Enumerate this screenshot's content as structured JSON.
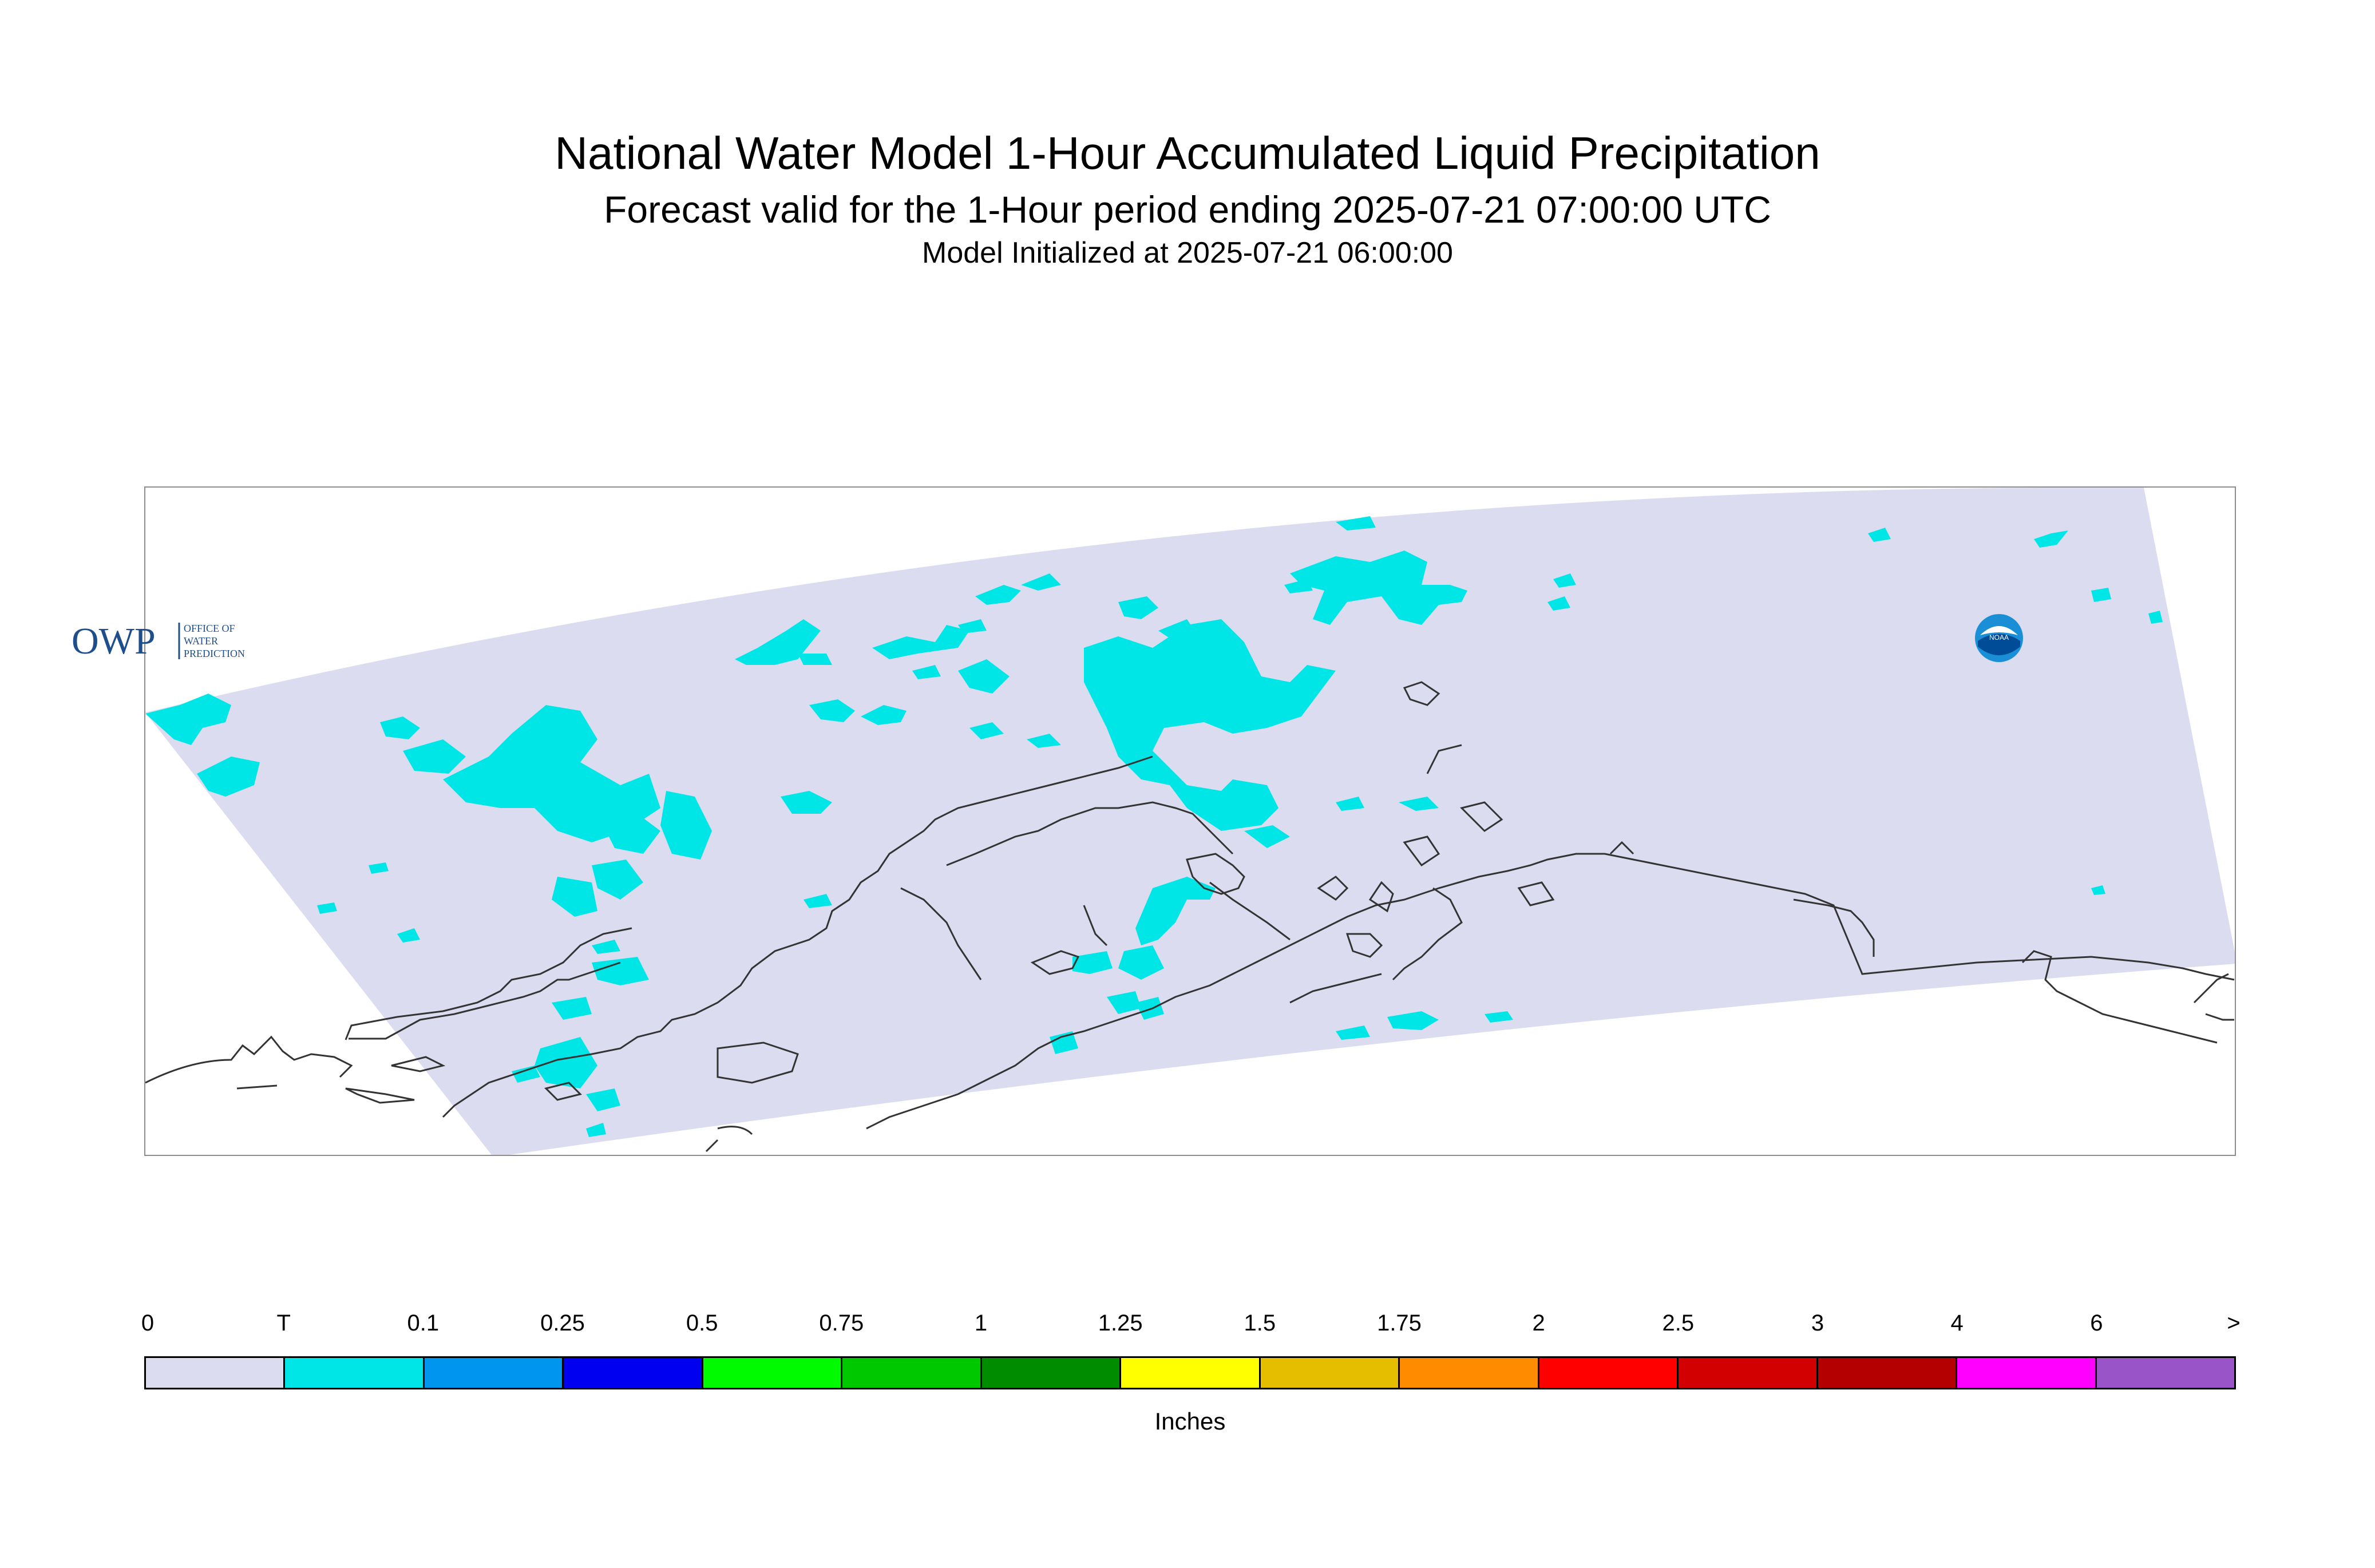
{
  "titles": {
    "main": "National Water Model 1-Hour Accumulated Liquid Precipitation",
    "sub": "Forecast valid for the 1-Hour period ending 2025-07-21 07:00:00 UTC",
    "init": "Model Initialized at 2025-07-21 06:00:00"
  },
  "logos": {
    "owp_mark": "OWP",
    "owp_text": [
      "OFFICE OF",
      "WATER",
      "PREDICTION"
    ],
    "noaa_mark": "NOAA"
  },
  "legend": {
    "tick_labels": [
      "0",
      "T",
      "0.1",
      "0.25",
      "0.5",
      "0.75",
      "1",
      "1.25",
      "1.5",
      "1.75",
      "2",
      "2.5",
      "3",
      "4",
      "6",
      ">"
    ],
    "colors": [
      "#dcdcf0",
      "#00e6e6",
      "#0096f0",
      "#0000f0",
      "#00fa00",
      "#00c800",
      "#008c00",
      "#ffff00",
      "#e6be00",
      "#ff8c00",
      "#ff0000",
      "#d20000",
      "#b40000",
      "#ff00ff",
      "#9955c8"
    ],
    "units": "Inches"
  },
  "map": {
    "domain_fill": "#dcdcf0",
    "precip_fill": "#00e6e6",
    "coast_color": "#333333"
  }
}
